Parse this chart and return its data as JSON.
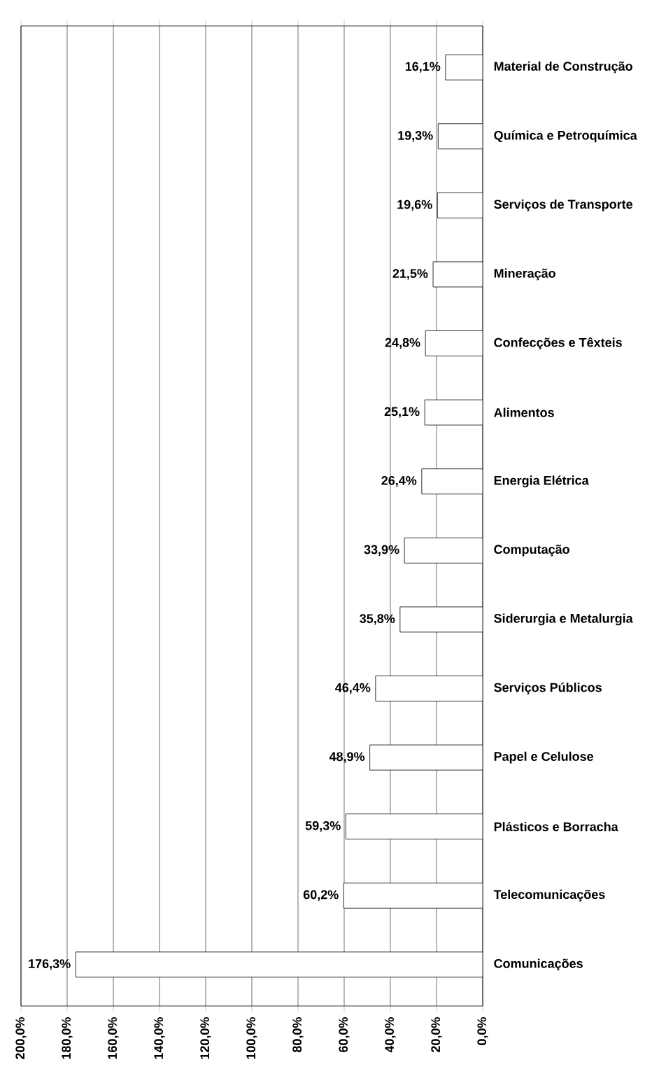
{
  "chart_data": {
    "type": "bar",
    "orientation": "horizontal",
    "categories": [
      "Material de Construção",
      "Química e Petroquímica",
      "Serviços de Transporte",
      "Mineração",
      "Confecções e Têxteis",
      "Alimentos",
      "Energia Elétrica",
      "Computação",
      "Siderurgia e Metalurgia",
      "Serviços Públicos",
      "Papel e Celulose",
      "Plásticos e Borracha",
      "Telecomunicações",
      "Comunicações"
    ],
    "values": [
      16.1,
      19.3,
      19.6,
      21.5,
      24.8,
      25.1,
      26.4,
      33.9,
      35.8,
      46.4,
      48.9,
      59.3,
      60.2,
      176.3
    ],
    "value_labels": [
      "16,1%",
      "19,3%",
      "19,6%",
      "21,5%",
      "24,8%",
      "25,1%",
      "26,4%",
      "33,9%",
      "35,8%",
      "46,4%",
      "48,9%",
      "59,3%",
      "60,2%",
      "176,3%"
    ],
    "color": "#ffffff",
    "xlim": [
      200,
      0
    ],
    "xticks": [
      {
        "value": 200,
        "label": "200,0%"
      },
      {
        "value": 180,
        "label": "180,0%"
      },
      {
        "value": 160,
        "label": "160,0%"
      },
      {
        "value": 140,
        "label": "140,0%"
      },
      {
        "value": 120,
        "label": "120,0%"
      },
      {
        "value": 100,
        "label": "100,0%"
      },
      {
        "value": 80,
        "label": "80,0%"
      },
      {
        "value": 60,
        "label": "60,0%"
      },
      {
        "value": 40,
        "label": "40,0%"
      },
      {
        "value": 20,
        "label": "20,0%"
      },
      {
        "value": 0,
        "label": "0,0%"
      }
    ],
    "grid": "x"
  }
}
